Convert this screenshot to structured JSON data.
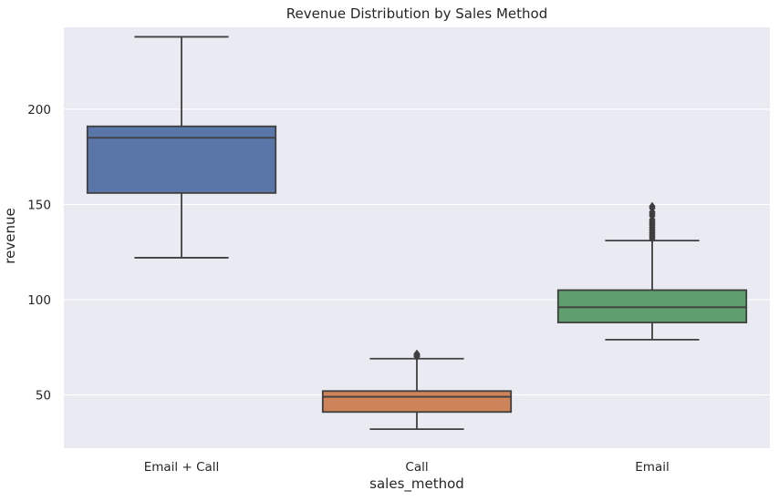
{
  "chart_data": {
    "type": "box",
    "title": "Revenue Distribution by Sales Method",
    "xlabel": "sales_method",
    "ylabel": "revenue",
    "ylim": [
      22,
      243
    ],
    "yticks": [
      50,
      100,
      150,
      200
    ],
    "grid": true,
    "categories": [
      "Email + Call",
      "Call",
      "Email"
    ],
    "boxes": [
      {
        "category": "Email + Call",
        "color": "#5a75a8",
        "whisker_low": 122,
        "q1": 156,
        "median": 185,
        "q3": 191,
        "whisker_high": 238,
        "outliers": []
      },
      {
        "category": "Call",
        "color": "#cf8358",
        "whisker_low": 32,
        "q1": 41,
        "median": 49,
        "q3": 52,
        "whisker_high": 69,
        "outliers": [
          70,
          70.5,
          71,
          71.5
        ]
      },
      {
        "category": "Email",
        "color": "#5f9e6e",
        "whisker_low": 79,
        "q1": 88,
        "median": 96,
        "q3": 105,
        "whisker_high": 131,
        "outliers": [
          132,
          133,
          134,
          135,
          136,
          137,
          138,
          139,
          140,
          141,
          142,
          144,
          145,
          146,
          148,
          149
        ]
      }
    ]
  }
}
